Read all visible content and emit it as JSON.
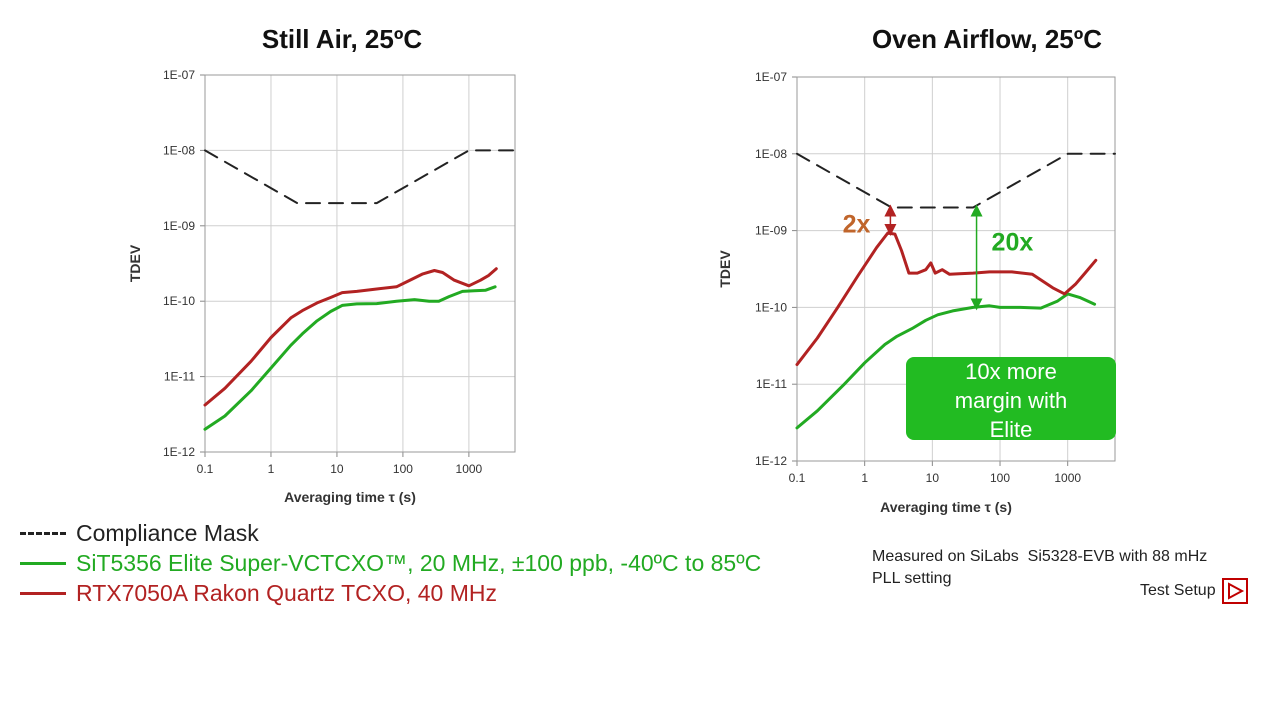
{
  "chart_data": [
    {
      "type": "line",
      "title": "Still Air, 25ºC",
      "xlabel": "Averaging time τ (s)",
      "ylabel": "TDEV",
      "xscale": "log",
      "yscale": "log",
      "xlim": [
        0.1,
        5000
      ],
      "ylim": [
        1e-12,
        1e-07
      ],
      "x_ticks": [
        "0.1",
        "1",
        "10",
        "100",
        "1000"
      ],
      "y_ticks": [
        "1E-12",
        "1E-11",
        "1E-10",
        "1E-09",
        "1E-08",
        "1E-07"
      ],
      "series": [
        {
          "name": "Compliance Mask",
          "style": "dashed",
          "color": "#222222",
          "x": [
            0.1,
            2.5,
            40,
            1000,
            5000
          ],
          "y": [
            1e-08,
            2e-09,
            2e-09,
            1e-08,
            1e-08
          ]
        },
        {
          "name": "SiT5356 Elite Super-VCTCXO™, 20 MHz, ±100 ppb, -40ºC to 85ºC",
          "style": "solid",
          "color": "#22aa22",
          "x": [
            0.1,
            0.2,
            0.5,
            1,
            2,
            3,
            5,
            8,
            12,
            20,
            40,
            80,
            150,
            250,
            350,
            500,
            800,
            1200,
            1800,
            2500
          ],
          "y": [
            2e-12,
            3e-12,
            6.5e-12,
            1.3e-11,
            2.6e-11,
            3.7e-11,
            5.5e-11,
            7.3e-11,
            8.8e-11,
            9.2e-11,
            9.3e-11,
            1e-10,
            1.05e-10,
            1e-10,
            1e-10,
            1.15e-10,
            1.35e-10,
            1.38e-10,
            1.4e-10,
            1.55e-10
          ]
        },
        {
          "name": "RTX7050A Rakon Quartz TCXO, 40 MHz",
          "style": "solid",
          "color": "#b22222",
          "x": [
            0.1,
            0.2,
            0.5,
            1,
            2,
            3,
            5,
            8,
            12,
            20,
            40,
            80,
            120,
            200,
            300,
            400,
            600,
            1000,
            1500,
            2000,
            2600
          ],
          "y": [
            4.2e-12,
            7e-12,
            1.6e-11,
            3.3e-11,
            6e-11,
            7.5e-11,
            9.5e-11,
            1.12e-10,
            1.3e-10,
            1.35e-10,
            1.45e-10,
            1.55e-10,
            1.85e-10,
            2.3e-10,
            2.55e-10,
            2.4e-10,
            1.9e-10,
            1.6e-10,
            1.9e-10,
            2.2e-10,
            2.7e-10
          ]
        }
      ]
    },
    {
      "type": "line",
      "title": "Oven Airflow, 25ºC",
      "xlabel": "Averaging time τ (s)",
      "ylabel": "TDEV",
      "xscale": "log",
      "yscale": "log",
      "xlim": [
        0.1,
        5000
      ],
      "ylim": [
        1e-12,
        1e-07
      ],
      "x_ticks": [
        "0.1",
        "1",
        "10",
        "100",
        "1000"
      ],
      "y_ticks": [
        "1E-12",
        "1E-11",
        "1E-10",
        "1E-09",
        "1E-08",
        "1E-07"
      ],
      "series": [
        {
          "name": "Compliance Mask",
          "style": "dashed",
          "color": "#222222",
          "x": [
            0.1,
            2.5,
            40,
            1000,
            5000
          ],
          "y": [
            1e-08,
            2e-09,
            2e-09,
            1e-08,
            1e-08
          ]
        },
        {
          "name": "SiT5356 Elite Super-VCTCXO™, 20 MHz, ±100 ppb, -40ºC to 85ºC",
          "style": "solid",
          "color": "#22aa22",
          "x": [
            0.1,
            0.2,
            0.5,
            1,
            2,
            3,
            5,
            8,
            12,
            20,
            40,
            70,
            100,
            200,
            400,
            700,
            1000,
            1500,
            2000,
            2500
          ],
          "y": [
            2.7e-12,
            4.5e-12,
            1e-11,
            1.9e-11,
            3.3e-11,
            4.2e-11,
            5.3e-11,
            6.8e-11,
            8e-11,
            9e-11,
            1e-10,
            1.05e-10,
            1e-10,
            1e-10,
            9.8e-11,
            1.2e-10,
            1.5e-10,
            1.35e-10,
            1.2e-10,
            1.1e-10
          ]
        },
        {
          "name": "RTX7050A Rakon Quartz TCXO, 40 MHz",
          "style": "solid",
          "color": "#b22222",
          "x": [
            0.1,
            0.2,
            0.4,
            0.8,
            1.5,
            2.2,
            2.8,
            3.5,
            4.5,
            6,
            8,
            9.5,
            11,
            14,
            18,
            25,
            40,
            70,
            150,
            300,
            600,
            900,
            1300,
            1800,
            2600
          ],
          "y": [
            1.8e-11,
            4e-11,
            1e-10,
            2.6e-10,
            6e-10,
            9.3e-10,
            9e-10,
            5.5e-10,
            2.8e-10,
            2.8e-10,
            3.1e-10,
            3.8e-10,
            2.8e-10,
            3.1e-10,
            2.7e-10,
            2.75e-10,
            2.8e-10,
            2.9e-10,
            2.9e-10,
            2.7e-10,
            1.8e-10,
            1.5e-10,
            2e-10,
            2.8e-10,
            4.1e-10
          ]
        }
      ],
      "annotations": {
        "mask_vs_rakon": "2x",
        "mask_vs_elite": "20x",
        "callout": [
          "10x more",
          "margin with",
          "Elite"
        ]
      }
    }
  ],
  "legend": {
    "items": [
      {
        "label": "Compliance Mask",
        "color": "#222222",
        "style": "dashed"
      },
      {
        "label": "SiT5356 Elite Super-VCTCXO™, 20 MHz, ±100 ppb, -40ºC to 85ºC",
        "color": "#22aa22",
        "style": "solid"
      },
      {
        "label": "RTX7050A Rakon Quartz TCXO, 40 MHz",
        "color": "#b22222",
        "style": "solid"
      }
    ]
  },
  "note": {
    "line1": "Measured on SiLabs  Si5328-EVB with 88 mHz",
    "line2": "PLL setting"
  },
  "test_setup": {
    "label": "Test Setup"
  },
  "colors": {
    "elite": "#22aa22",
    "rakon": "#b22222",
    "mask": "#222222",
    "callout_bg": "#22bb22",
    "two_x": "#c0652b"
  }
}
